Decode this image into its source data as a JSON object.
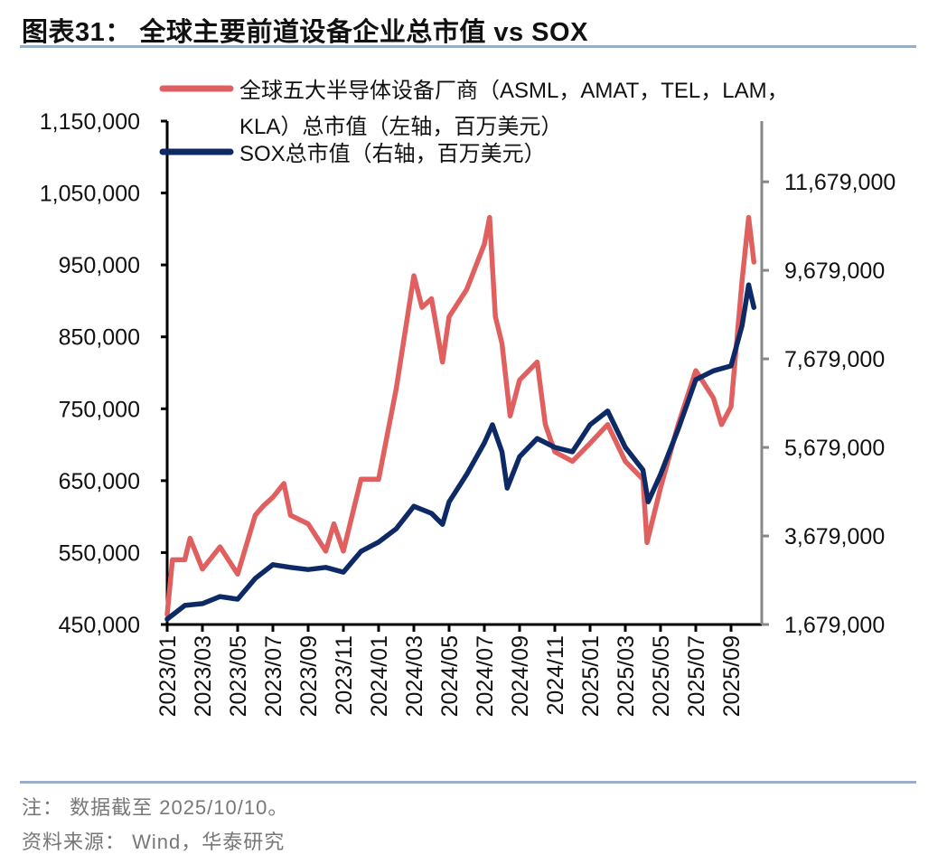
{
  "title": "图表31：  全球主要前道设备企业总市值 vs SOX",
  "notes": {
    "note": "注： 数据截至 2025/10/10。",
    "source": "资料来源： Wind，华泰研究"
  },
  "chart_data": {
    "type": "line",
    "legend_placement": "top",
    "grid": false,
    "x_ticks": [
      "2023/01",
      "2023/03",
      "2023/05",
      "2023/07",
      "2023/09",
      "2023/11",
      "2024/01",
      "2024/03",
      "2024/05",
      "2024/07",
      "2024/09",
      "2024/11",
      "2025/01",
      "2025/03",
      "2025/05",
      "2025/07",
      "2025/09"
    ],
    "xlim": [
      "2023-01-01",
      "2025-10-10"
    ],
    "y_left": {
      "ylim": [
        450000,
        1150000
      ],
      "ticks": [
        "450,000",
        "550,000",
        "650,000",
        "750,000",
        "850,000",
        "950,000",
        "1,050,000",
        "1,150,000"
      ]
    },
    "y_right": {
      "ylim": [
        1679000,
        13050000
      ],
      "ticks": [
        "1,679,000",
        "3,679,000",
        "5,679,000",
        "7,679,000",
        "9,679,000",
        "11,679,000"
      ]
    },
    "series": [
      {
        "name": "全球五大半导体设备厂商（ASML，AMAT，TEL，LAM，KLA）总市值（左轴，百万美元）",
        "legend_lines": [
          "全球五大半导体设备厂商（ASML，AMAT，TEL，LAM，",
          "KLA）总市值（左轴，百万美元）"
        ],
        "axis": "left",
        "color": "#e06060",
        "x": [
          "2023-01-01",
          "2023-01-10",
          "2023-02-01",
          "2023-02-10",
          "2023-03-01",
          "2023-04-01",
          "2023-05-01",
          "2023-06-01",
          "2023-06-15",
          "2023-07-01",
          "2023-07-20",
          "2023-08-01",
          "2023-09-01",
          "2023-10-01",
          "2023-10-15",
          "2023-11-01",
          "2023-12-01",
          "2024-01-01",
          "2024-02-01",
          "2024-03-01",
          "2024-03-15",
          "2024-04-01",
          "2024-04-20",
          "2024-05-01",
          "2024-06-01",
          "2024-07-01",
          "2024-07-10",
          "2024-07-20",
          "2024-08-01",
          "2024-08-15",
          "2024-09-01",
          "2024-10-01",
          "2024-10-15",
          "2024-11-01",
          "2024-12-01",
          "2025-01-01",
          "2025-02-01",
          "2025-03-01",
          "2025-04-01",
          "2025-04-08",
          "2025-05-01",
          "2025-06-01",
          "2025-07-01",
          "2025-08-01",
          "2025-08-15",
          "2025-09-01",
          "2025-09-20",
          "2025-10-01",
          "2025-10-10"
        ],
        "values": [
          464000,
          540000,
          540000,
          570000,
          527000,
          558000,
          520000,
          602000,
          615000,
          627000,
          646000,
          602000,
          590000,
          552000,
          590000,
          552000,
          652000,
          652000,
          778000,
          935000,
          891000,
          903000,
          815000,
          878000,
          916000,
          979000,
          1016000,
          878000,
          841000,
          740000,
          790000,
          815000,
          728000,
          690000,
          677000,
          702000,
          728000,
          677000,
          652000,
          564000,
          640000,
          728000,
          803000,
          765000,
          728000,
          753000,
          928000,
          1016000,
          954000
        ]
      },
      {
        "name": "SOX总市值（右轴，百万美元）",
        "legend_lines": [
          "SOX总市值（右轴，百万美元）"
        ],
        "axis": "right",
        "color": "#0d2a66",
        "x": [
          "2023-01-01",
          "2023-02-01",
          "2023-03-01",
          "2023-04-01",
          "2023-05-01",
          "2023-06-01",
          "2023-07-01",
          "2023-08-01",
          "2023-09-01",
          "2023-10-01",
          "2023-11-01",
          "2023-12-01",
          "2024-01-01",
          "2024-02-01",
          "2024-03-01",
          "2024-04-01",
          "2024-04-20",
          "2024-05-01",
          "2024-06-01",
          "2024-07-01",
          "2024-07-15",
          "2024-08-01",
          "2024-08-10",
          "2024-09-01",
          "2024-10-01",
          "2024-11-01",
          "2024-12-01",
          "2025-01-01",
          "2025-02-01",
          "2025-03-01",
          "2025-04-01",
          "2025-04-10",
          "2025-05-01",
          "2025-06-01",
          "2025-07-01",
          "2025-08-01",
          "2025-09-01",
          "2025-09-20",
          "2025-10-01",
          "2025-10-10"
        ],
        "values": [
          1800000,
          2110000,
          2150000,
          2310000,
          2250000,
          2720000,
          3030000,
          2970000,
          2920000,
          2970000,
          2860000,
          3330000,
          3540000,
          3840000,
          4350000,
          4190000,
          3940000,
          4450000,
          5070000,
          5780000,
          6190000,
          5580000,
          4760000,
          5470000,
          5880000,
          5680000,
          5580000,
          6190000,
          6500000,
          5680000,
          5170000,
          4450000,
          5070000,
          6090000,
          7210000,
          7410000,
          7520000,
          8430000,
          9350000,
          8840000
        ]
      }
    ]
  }
}
